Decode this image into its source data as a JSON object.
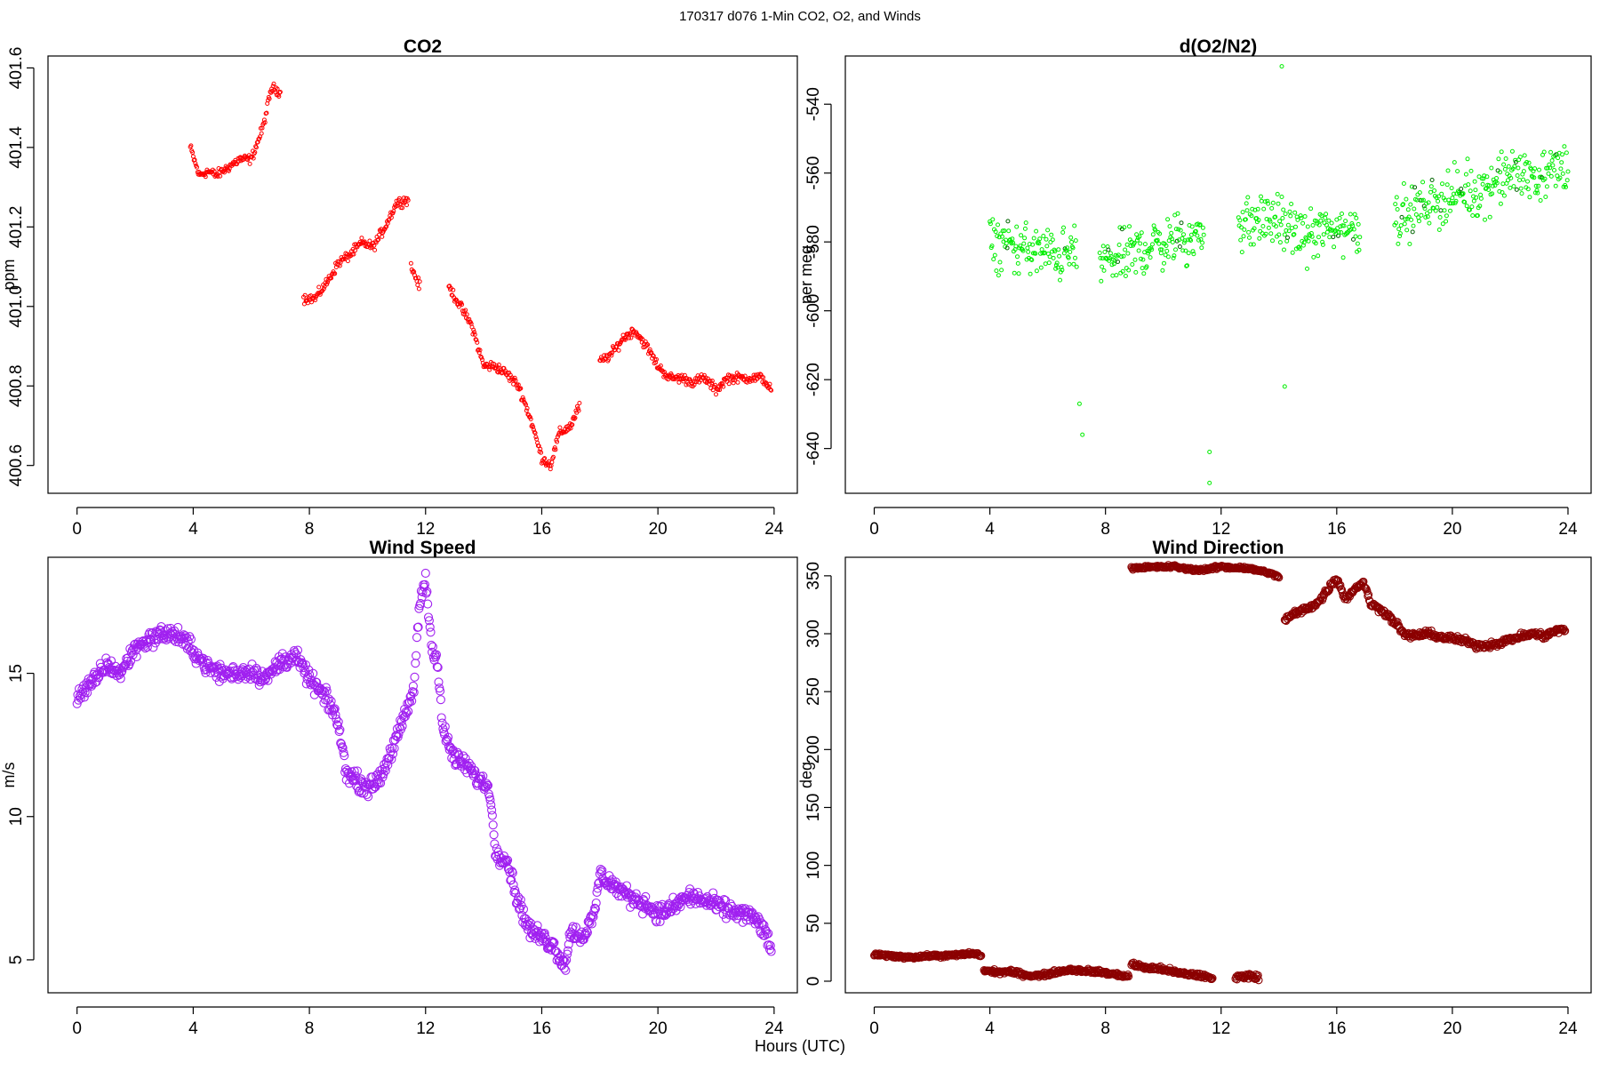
{
  "super_title": "170317   d076   1-Min CO2, O2, and Winds",
  "shared_xlabel": "Hours (UTC)",
  "chart_data": [
    {
      "type": "scatter",
      "title": "CO2",
      "xlabel": "",
      "ylabel": "ppm",
      "xlim": [
        -1,
        24.8
      ],
      "ylim": [
        400.53,
        401.63
      ],
      "xticks": [
        0,
        4,
        8,
        12,
        16,
        20,
        24
      ],
      "yticks": [
        400.6,
        400.8,
        401.0,
        401.2,
        401.4,
        401.6
      ],
      "ytick_labels": [
        "400.6",
        "400.8",
        "401.0",
        "401.2",
        "401.4",
        "401.6"
      ],
      "color": "#ff0000",
      "marker_size": 2,
      "grid": false,
      "series": [
        {
          "segments": [
            {
              "x": [
                3.9,
                4.2,
                4.5,
                4.8,
                5.2,
                5.6,
                6.0,
                6.4,
                6.7,
                7.0
              ],
              "y": [
                401.4,
                401.33,
                401.34,
                401.33,
                401.35,
                401.37,
                401.37,
                401.45,
                401.55,
                401.54
              ]
            },
            {
              "x": [
                7.8,
                8.2,
                8.6,
                9.0,
                9.4,
                9.8,
                10.2,
                10.6,
                11.0,
                11.4
              ],
              "y": [
                401.02,
                401.02,
                401.06,
                401.11,
                401.13,
                401.16,
                401.15,
                401.2,
                401.26,
                401.27
              ]
            },
            {
              "x": [
                11.5,
                11.8
              ],
              "y": [
                401.1,
                401.05
              ]
            },
            {
              "x": [
                12.8,
                13.2,
                13.6,
                14.0,
                14.4,
                14.8,
                15.2,
                15.6,
                16.0,
                16.3,
                16.6,
                17.0,
                17.3
              ],
              "y": [
                401.05,
                401.0,
                400.95,
                400.85,
                400.85,
                400.83,
                400.8,
                400.72,
                400.62,
                400.6,
                400.68,
                400.7,
                400.75
              ]
            },
            {
              "x": [
                18.0,
                18.4,
                18.8,
                19.2,
                19.6,
                20.0,
                20.4,
                20.8,
                21.2,
                21.6,
                22.0,
                22.4,
                22.8,
                23.2,
                23.6,
                23.9
              ],
              "y": [
                400.86,
                400.88,
                400.92,
                400.94,
                400.9,
                400.85,
                400.82,
                400.82,
                400.81,
                400.82,
                400.79,
                400.82,
                400.82,
                400.82,
                400.82,
                400.79
              ]
            }
          ],
          "jitter": 0.018
        }
      ]
    },
    {
      "type": "scatter",
      "title": "d(O2/N2)",
      "xlabel": "",
      "ylabel": "per meg",
      "xlim": [
        -1,
        24.8
      ],
      "ylim": [
        -653,
        -526
      ],
      "xticks": [
        0,
        4,
        8,
        12,
        16,
        20,
        24
      ],
      "yticks": [
        -640,
        -620,
        -600,
        -580,
        -560,
        -540
      ],
      "ytick_labels": [
        "-640",
        "-620",
        "-600",
        "-580",
        "-560",
        "-540"
      ],
      "color": "#00ee00",
      "marker_size": 2,
      "grid": false,
      "series": [
        {
          "segments": [
            {
              "x": [
                4.0,
                4.6,
                5.2,
                5.8,
                6.4,
                7.0
              ],
              "y": [
                -580,
                -581,
                -582,
                -583,
                -584,
                -583
              ]
            },
            {
              "x": [
                7.8,
                8.4,
                9.0,
                9.6,
                10.2,
                10.8,
                11.4
              ],
              "y": [
                -586,
                -585,
                -583,
                -581,
                -580,
                -579,
                -578
              ]
            },
            {
              "x": [
                12.6,
                13.2,
                13.8,
                14.4,
                15.0,
                15.6,
                16.2,
                16.8
              ],
              "y": [
                -575,
                -574,
                -573,
                -577,
                -578,
                -577,
                -576,
                -576
              ]
            },
            {
              "x": [
                18.0,
                18.6,
                19.2,
                19.8,
                20.4,
                21.0,
                21.6,
                22.2,
                22.8,
                23.4,
                24.0
              ],
              "y": [
                -573,
                -571,
                -569,
                -567,
                -566,
                -565,
                -562,
                -560,
                -561,
                -560,
                -558
              ]
            }
          ],
          "jitter": 11
        },
        {
          "outliers": {
            "x": [
              7.1,
              7.2,
              11.6,
              11.6,
              14.1,
              14.2
            ],
            "y": [
              -627,
              -636,
              -641,
              -650,
              -529,
              -622
            ]
          }
        }
      ]
    },
    {
      "type": "scatter",
      "title": "Wind Speed",
      "xlabel": "",
      "ylabel": "m/s",
      "xlim": [
        -1,
        24.8
      ],
      "ylim": [
        3.85,
        19.05
      ],
      "xticks": [
        0,
        4,
        8,
        12,
        16,
        20,
        24
      ],
      "yticks": [
        5,
        10,
        15
      ],
      "ytick_labels": [
        "5",
        "10",
        "15"
      ],
      "color": "#a020f0",
      "marker_size": 4.5,
      "grid": false,
      "series": [
        {
          "segments": [
            {
              "x": [
                0.0,
                0.5,
                1.0,
                1.5,
                2.0,
                2.5,
                3.0,
                3.5,
                4.0,
                4.5,
                5.0,
                5.5,
                6.0,
                6.5,
                7.0,
                7.5,
                8.0,
                8.5,
                8.9,
                9.3,
                9.7,
                10.1,
                10.5,
                10.9,
                11.3,
                11.6,
                11.8,
                12.0,
                12.2,
                12.4,
                12.6,
                13.0,
                13.4,
                13.8,
                14.2,
                14.4,
                14.8,
                15.2,
                15.6,
                16.0,
                16.4,
                16.8,
                17.0,
                17.4,
                17.8,
                18.0,
                18.2,
                18.6,
                19.0,
                19.5,
                20.0,
                20.5,
                21.0,
                21.5,
                22.0,
                22.5,
                23.0,
                23.5,
                23.9
              ],
              "y": [
                14.2,
                14.6,
                15.3,
                15.0,
                15.9,
                16.2,
                16.4,
                16.3,
                15.8,
                15.2,
                15.0,
                15.0,
                15.1,
                14.8,
                15.4,
                15.6,
                14.8,
                14.2,
                13.6,
                11.5,
                11.2,
                11.0,
                11.5,
                12.5,
                13.5,
                14.5,
                17.5,
                18.3,
                16.0,
                15.5,
                13.0,
                12.0,
                11.8,
                11.3,
                11.0,
                8.8,
                8.5,
                7.0,
                6.0,
                5.8,
                5.5,
                4.8,
                6.0,
                5.8,
                6.5,
                8.0,
                7.8,
                7.5,
                7.2,
                7.0,
                6.6,
                6.8,
                7.2,
                7.1,
                6.9,
                6.7,
                6.6,
                6.3,
                5.4
              ],
              "jitter": 0.45
            }
          ]
        }
      ]
    },
    {
      "type": "scatter",
      "title": "Wind Direction",
      "xlabel": "",
      "ylabel": "deg",
      "xlim": [
        -1,
        24.8
      ],
      "ylim": [
        -10,
        366
      ],
      "xticks": [
        0,
        4,
        8,
        12,
        16,
        20,
        24
      ],
      "yticks": [
        0,
        50,
        100,
        150,
        200,
        250,
        300,
        350
      ],
      "ytick_labels": [
        "0",
        "50",
        "100",
        "150",
        "200",
        "250",
        "300",
        "350"
      ],
      "color": "#8b0000",
      "marker_size": 4,
      "grid": false,
      "series": [
        {
          "segments": [
            {
              "x": [
                0.0,
                0.5,
                1.0,
                1.5,
                2.0,
                2.5,
                3.0,
                3.5,
                3.7
              ],
              "y": [
                23,
                22,
                21,
                21,
                22,
                22,
                23,
                24,
                22
              ],
              "jitter": 2
            },
            {
              "x": [
                3.8,
                4.3,
                4.8,
                5.3,
                5.8,
                6.3,
                6.8,
                7.3,
                7.8,
                8.3,
                8.8
              ],
              "y": [
                9,
                8,
                8,
                5,
                5,
                8,
                10,
                9,
                8,
                6,
                4
              ],
              "jitter": 2.5
            },
            {
              "x": [
                8.9,
                9.3,
                9.7,
                10.1,
                10.5,
                10.9,
                11.3,
                11.7
              ],
              "y": [
                15,
                12,
                11,
                10,
                7,
                6,
                5,
                2
              ],
              "jitter": 3
            },
            {
              "x": [
                12.5,
                12.9,
                13.3
              ],
              "y": [
                3,
                5,
                3
              ],
              "jitter": 3
            },
            {
              "x": [
                8.9,
                10.4,
                10.8,
                11.2,
                11.6,
                12.0,
                12.4,
                12.8,
                13.2,
                13.6,
                14.0
              ],
              "y": [
                357,
                358,
                356,
                355,
                356,
                358,
                357,
                357,
                355,
                353,
                349
              ],
              "jitter": 2
            },
            {
              "x": [
                14.2,
                14.6,
                15.0,
                15.4,
                15.8,
                16.0,
                16.3,
                16.6,
                16.9,
                17.2,
                17.6,
                18.0,
                18.4,
                18.8,
                19.2,
                19.6,
                20.0,
                20.4,
                20.8,
                21.2,
                21.6,
                22.0,
                22.4,
                22.8,
                23.2,
                23.6,
                23.9
              ],
              "y": [
                312,
                318,
                322,
                328,
                342,
                348,
                330,
                338,
                345,
                325,
                320,
                310,
                298,
                299,
                300,
                297,
                296,
                294,
                290,
                290,
                292,
                295,
                298,
                300,
                298,
                303,
                303
              ],
              "jitter": 4
            }
          ]
        }
      ]
    }
  ]
}
